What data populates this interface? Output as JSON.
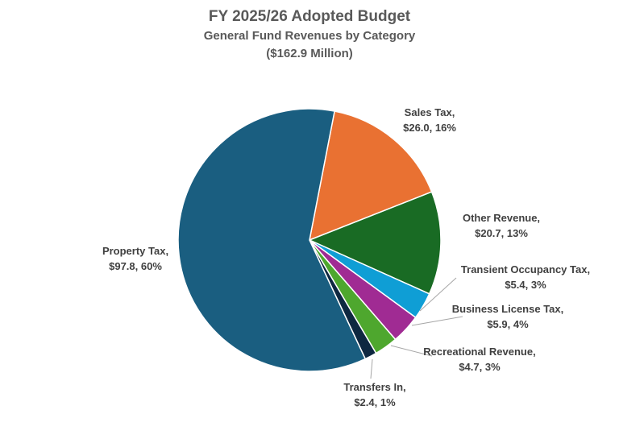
{
  "chart_data": {
    "type": "pie",
    "title": "FY 2025/26 Adopted Budget",
    "subtitle": "General Fund Revenues by Category",
    "total_label": "($162.9 Million)",
    "start_angle_deg": 11,
    "direction": "clockwise",
    "slices": [
      {
        "name": "Sales Tax",
        "value": 26.0,
        "percent": 16,
        "label_line1": "Sales Tax,",
        "label_line2": "$26.0, 16%",
        "color": "#e97132"
      },
      {
        "name": "Other Revenue",
        "value": 20.7,
        "percent": 13,
        "label_line1": "Other Revenue,",
        "label_line2": "$20.7, 13%",
        "color": "#196b24"
      },
      {
        "name": "Transient Occupancy Tax",
        "value": 5.4,
        "percent": 3,
        "label_line1": "Transient Occupancy Tax,",
        "label_line2": "$5.4, 3%",
        "color": "#0f9ed5"
      },
      {
        "name": "Business License Tax",
        "value": 5.9,
        "percent": 4,
        "label_line1": "Business License Tax,",
        "label_line2": "$5.9, 4%",
        "color": "#a02b93"
      },
      {
        "name": "Recreational Revenue",
        "value": 4.7,
        "percent": 3,
        "label_line1": "Recreational Revenue,",
        "label_line2": "$4.7, 3%",
        "color": "#4ea72e"
      },
      {
        "name": "Transfers In",
        "value": 2.4,
        "percent": 1,
        "label_line1": "Transfers In,",
        "label_line2": "$2.4, 1%",
        "color": "#0e2841"
      },
      {
        "name": "Property Tax",
        "value": 97.8,
        "percent": 60,
        "label_line1": "Property Tax,",
        "label_line2": "$97.8, 60%",
        "color": "#1a5e80"
      }
    ]
  }
}
